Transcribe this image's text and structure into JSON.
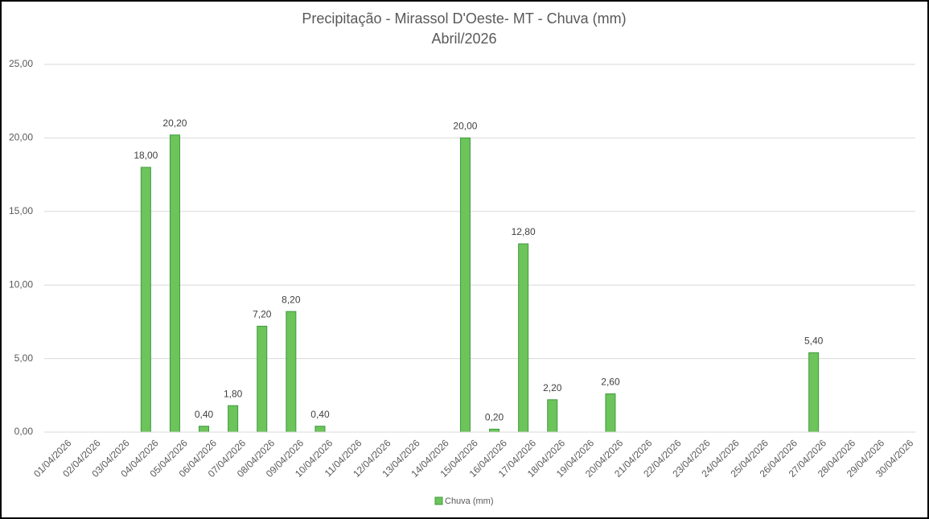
{
  "chart_data": {
    "type": "bar",
    "title": "Precipitação - Mirassol D'Oeste- MT - Chuva (mm)",
    "subtitle": "Abril/2026",
    "categories": [
      "01/04/2026",
      "02/04/2026",
      "03/04/2026",
      "04/04/2026",
      "05/04/2026",
      "06/04/2026",
      "07/04/2026",
      "08/04/2026",
      "09/04/2026",
      "10/04/2026",
      "11/04/2026",
      "12/04/2026",
      "13/04/2026",
      "14/04/2026",
      "15/04/2026",
      "16/04/2026",
      "17/04/2026",
      "18/04/2026",
      "19/04/2026",
      "20/04/2026",
      "21/04/2026",
      "22/04/2026",
      "23/04/2026",
      "24/04/2026",
      "25/04/2026",
      "26/04/2026",
      "27/04/2026",
      "28/04/2026",
      "29/04/2026",
      "30/04/2026"
    ],
    "series": [
      {
        "name": "Chuva (mm)",
        "color": "#6cc45a",
        "values": [
          null,
          null,
          null,
          18,
          20.2,
          0.4,
          1.8,
          7.2,
          8.2,
          0.4,
          null,
          null,
          null,
          null,
          20,
          0.2,
          12.8,
          2.2,
          null,
          2.6,
          null,
          null,
          null,
          null,
          null,
          null,
          5.4,
          null,
          null,
          null
        ],
        "value_labels": [
          null,
          null,
          null,
          "18,00",
          "20,20",
          "0,40",
          "1,80",
          "7,20",
          "8,20",
          "0,40",
          null,
          null,
          null,
          null,
          "20,00",
          "0,20",
          "12,80",
          "2,20",
          null,
          "2,60",
          null,
          null,
          null,
          null,
          null,
          null,
          "5,40",
          null,
          null,
          null
        ]
      }
    ],
    "ylim": [
      0,
      25
    ],
    "yticks": [
      {
        "value": 0,
        "label": "0,00"
      },
      {
        "value": 5,
        "label": "5,00"
      },
      {
        "value": 10,
        "label": "10,00"
      },
      {
        "value": 15,
        "label": "15,00"
      },
      {
        "value": 20,
        "label": "20,00"
      },
      {
        "value": 25,
        "label": "25,00"
      }
    ],
    "grid": true,
    "legend": "bottom"
  }
}
